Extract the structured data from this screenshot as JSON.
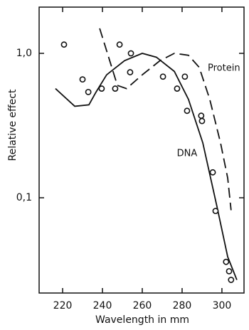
{
  "chart_data": {
    "type": "line",
    "x_label": "Wavelength in mm",
    "y_label": "Relative effect",
    "xlim": [
      208.2,
      311.1
    ],
    "ylim": [
      0.0219,
      2.09
    ],
    "ylog": true,
    "xticks": [
      220,
      240,
      260,
      280,
      300
    ],
    "yticks": [
      {
        "value": 1,
        "label": "1,0"
      },
      {
        "value": 0.1,
        "label": "0,1"
      }
    ],
    "color": "#111111",
    "series": [
      {
        "name": "DNA",
        "style": "solid",
        "x": [
          216.4,
          226.1,
          233.2,
          236.8,
          242.1,
          251.1,
          260,
          267.1,
          276.1,
          283.2,
          290.4,
          297.5,
          302.9,
          307.5
        ],
        "values": [
          0.57,
          0.43,
          0.44,
          0.54,
          0.71,
          0.89,
          1.0,
          0.94,
          0.75,
          0.48,
          0.24,
          0.087,
          0.039,
          0.027
        ]
      },
      {
        "name": "Protein",
        "style": "dashed",
        "x": [
          238.6,
          247.5,
          252.1,
          260,
          268.9,
          276.1,
          283.2,
          288.6,
          293.9,
          299.3,
          302.9,
          304.6
        ],
        "values": [
          1.49,
          0.6,
          0.57,
          0.71,
          0.89,
          1.0,
          0.97,
          0.8,
          0.48,
          0.24,
          0.137,
          0.082
        ]
      }
    ],
    "points": {
      "x": [
        220.7,
        230,
        232.9,
        239.6,
        246.4,
        248.6,
        254.3,
        253.9,
        270.4,
        277.5,
        281.4,
        282.5,
        289.6,
        290,
        295.4,
        296.8,
        302.1,
        303.6,
        304.6
      ],
      "values": [
        1.15,
        0.66,
        0.54,
        0.57,
        0.57,
        1.15,
        1.0,
        0.74,
        0.69,
        0.57,
        0.69,
        0.4,
        0.37,
        0.34,
        0.15,
        0.081,
        0.036,
        0.031,
        0.027
      ]
    }
  }
}
